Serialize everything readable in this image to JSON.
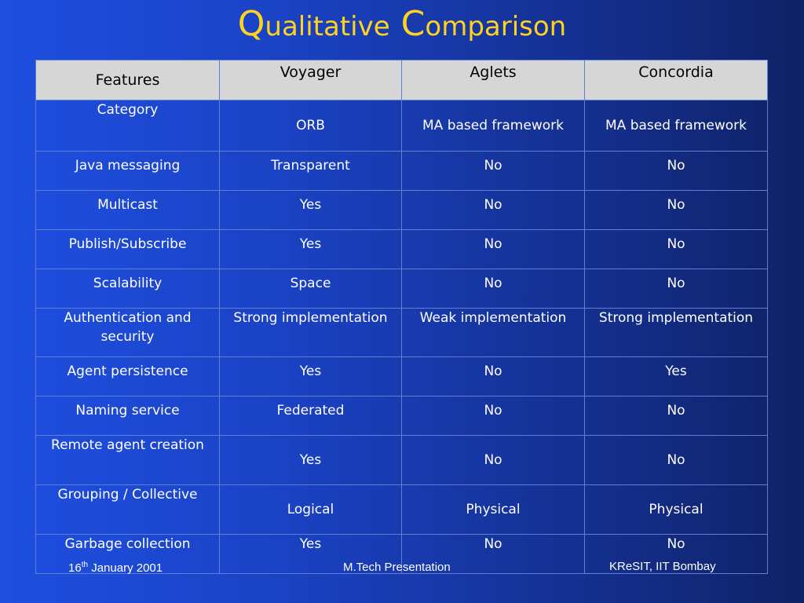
{
  "title": {
    "first_cap": "Q",
    "first_rest": "ualitative",
    "second_cap": "C",
    "second_rest": "omparison"
  },
  "table": {
    "headers": [
      "Features",
      "Voyager",
      "Aglets",
      "Concordia"
    ],
    "rows": [
      [
        "Category",
        "ORB",
        "MA based framework",
        "MA based framework"
      ],
      [
        "Java messaging",
        "Transparent",
        "No",
        "No"
      ],
      [
        "Multicast",
        "Yes",
        "No",
        "No"
      ],
      [
        "Publish/Subscribe",
        "Yes",
        "No",
        "No"
      ],
      [
        "Scalability",
        "Space",
        "No",
        "No"
      ],
      [
        "Authentication and security",
        "Strong implementation",
        "Weak implementation",
        "Strong implementation"
      ],
      [
        "Agent persistence",
        "Yes",
        "No",
        "Yes"
      ],
      [
        "Naming service",
        "Federated",
        "No",
        "No"
      ],
      [
        "Remote agent creation",
        "Yes",
        "No",
        "No"
      ],
      [
        "Grouping / Collective",
        "Logical",
        "Physical",
        "Physical"
      ],
      [
        "Garbage collection",
        "Yes",
        "No",
        "No"
      ]
    ]
  },
  "footer": {
    "date_day": "16",
    "date_suffix": "th",
    "date_rest": " January 2001",
    "center": "M.Tech Presentation",
    "right": "KReSIT, IIT Bombay"
  },
  "colors": {
    "title": "#ffd21f",
    "header_bg": "#d6d6d6",
    "background": "#1a42c4"
  }
}
